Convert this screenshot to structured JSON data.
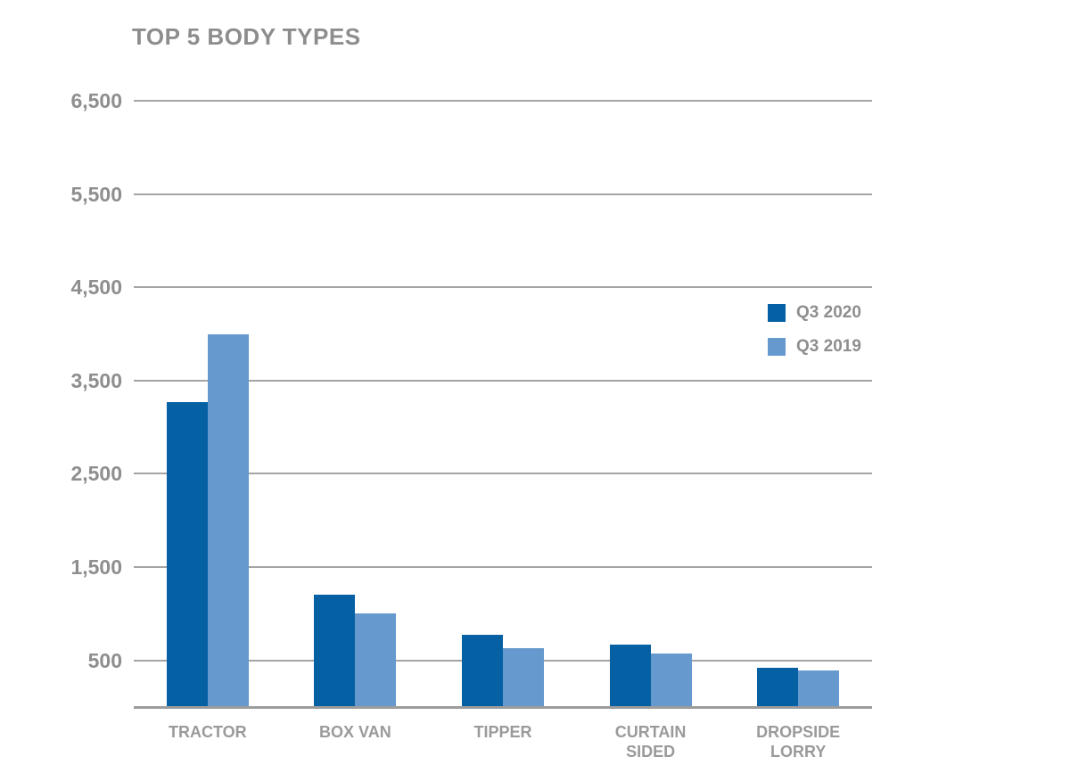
{
  "title": "TOP 5 BODY TYPES",
  "colors": {
    "series_q3_2020": "#0560a4",
    "series_q3_2019": "#6699ce",
    "gridline": "#a4a4a4",
    "baseline": "#9c9c9c",
    "title_text": "#8d8d8d",
    "axis_text": "#8e8e8e",
    "category_text": "#9a9a9a",
    "background": "#ffffff"
  },
  "chart_data": {
    "type": "bar",
    "title": "TOP 5 BODY TYPES",
    "xlabel": "",
    "ylabel": "",
    "categories": [
      "TRACTOR",
      "BOX VAN",
      "TIPPER",
      "CURTAIN SIDED",
      "DROPSIDE LORRY"
    ],
    "category_display_lines": [
      [
        "TRACTOR"
      ],
      [
        "BOX VAN"
      ],
      [
        "TIPPER"
      ],
      [
        "CURTAIN",
        "SIDED"
      ],
      [
        "DROPSIDE",
        "LORRY"
      ]
    ],
    "series": [
      {
        "name": "Q3 2020",
        "color": "#0560a4",
        "values": [
          3270,
          1200,
          770,
          670,
          420
        ]
      },
      {
        "name": "Q3 2019",
        "color": "#6699ce",
        "values": [
          4000,
          1000,
          630,
          570,
          390
        ]
      }
    ],
    "ylim": [
      0,
      6500
    ],
    "yticks": [
      500,
      1500,
      2500,
      3500,
      4500,
      5500,
      6500
    ],
    "ytick_labels": [
      "500",
      "1,500",
      "2,500",
      "3,500",
      "4,500",
      "5,500",
      "6,500"
    ],
    "grid": true,
    "legend_position": "upper-right"
  },
  "legend": {
    "items": [
      {
        "label": "Q3 2020"
      },
      {
        "label": "Q3 2019"
      }
    ]
  }
}
